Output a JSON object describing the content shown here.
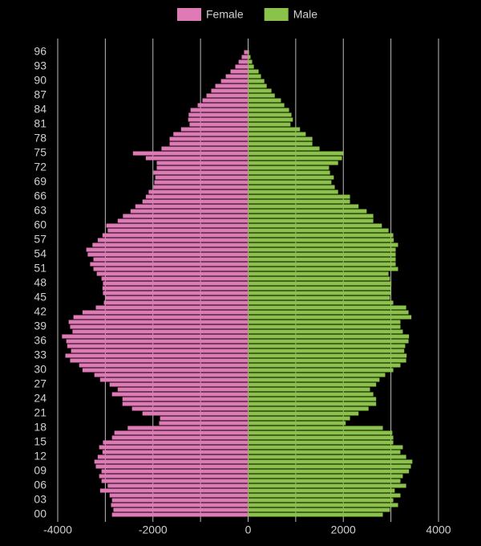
{
  "chart_data": {
    "type": "bar",
    "orientation": "horizontal",
    "stacking": "diverging",
    "categories": [
      "00",
      null,
      null,
      "03",
      null,
      null,
      "06",
      null,
      null,
      "09",
      null,
      null,
      "12",
      null,
      null,
      "15",
      null,
      null,
      "18",
      null,
      null,
      "21",
      null,
      null,
      "24",
      null,
      null,
      "27",
      null,
      null,
      "30",
      null,
      null,
      "33",
      null,
      null,
      "36",
      null,
      null,
      "39",
      null,
      null,
      "42",
      null,
      null,
      "45",
      null,
      null,
      "48",
      null,
      null,
      "51",
      null,
      null,
      "54",
      null,
      null,
      "57",
      null,
      null,
      "60",
      null,
      null,
      "63",
      null,
      null,
      "66",
      null,
      null,
      "69",
      null,
      null,
      "72",
      null,
      null,
      "75",
      null,
      null,
      "78",
      null,
      null,
      "81",
      null,
      null,
      "84",
      null,
      null,
      "87",
      null,
      null,
      "90",
      null,
      null,
      "93",
      null,
      null,
      "96"
    ],
    "series": [
      {
        "name": "Female",
        "color": "#e07ab6",
        "values": [
          -2860,
          -2830,
          -2880,
          -2860,
          -2910,
          -3110,
          -2950,
          -3080,
          -3130,
          -3080,
          -3200,
          -3230,
          -3160,
          -3060,
          -3130,
          -3050,
          -2860,
          -2810,
          -2530,
          -1870,
          -1850,
          -2220,
          -2440,
          -2640,
          -2640,
          -2860,
          -2740,
          -2910,
          -3110,
          -3230,
          -3480,
          -3550,
          -3740,
          -3840,
          -3720,
          -3800,
          -3820,
          -3910,
          -3690,
          -3740,
          -3770,
          -3670,
          -3480,
          -3200,
          -3030,
          -3000,
          -3050,
          -3060,
          -3050,
          -3080,
          -3180,
          -3250,
          -3320,
          -3250,
          -3370,
          -3400,
          -3270,
          -3160,
          -3060,
          -2950,
          -2980,
          -2740,
          -2630,
          -2470,
          -2370,
          -2220,
          -2150,
          -2090,
          -1990,
          -1970,
          -1950,
          -1990,
          -1920,
          -1920,
          -2150,
          -2420,
          -1820,
          -1650,
          -1650,
          -1570,
          -1410,
          -1230,
          -1260,
          -1250,
          -1210,
          -1060,
          -960,
          -875,
          -775,
          -690,
          -570,
          -470,
          -370,
          -270,
          -200,
          -135,
          -85
        ]
      },
      {
        "name": "Male",
        "color": "#8bc34a",
        "values": [
          2830,
          2980,
          3150,
          3050,
          3200,
          3080,
          3320,
          3200,
          3250,
          3380,
          3420,
          3450,
          3320,
          3200,
          3250,
          3050,
          3050,
          3030,
          2830,
          2050,
          2140,
          2320,
          2530,
          2690,
          2690,
          2630,
          2560,
          2690,
          2760,
          2880,
          3050,
          3200,
          3320,
          3330,
          3280,
          3300,
          3370,
          3380,
          3250,
          3200,
          3200,
          3430,
          3370,
          3320,
          3050,
          2980,
          3000,
          3000,
          3010,
          2980,
          2950,
          3150,
          3100,
          3100,
          3100,
          3100,
          3150,
          3060,
          3050,
          2950,
          2810,
          2630,
          2630,
          2490,
          2320,
          2140,
          2140,
          1890,
          1820,
          1750,
          1800,
          1720,
          1700,
          1890,
          1970,
          2000,
          1500,
          1350,
          1350,
          1210,
          1090,
          890,
          940,
          910,
          860,
          760,
          690,
          560,
          490,
          390,
          340,
          270,
          220,
          120,
          85,
          50,
          20
        ]
      }
    ],
    "xlim": [
      -4000,
      4000
    ],
    "xticks": [
      -4000,
      -2000,
      0,
      2000,
      4000
    ],
    "minor_xticks": [
      -3000,
      -1000,
      1000,
      3000
    ],
    "grid": true,
    "legend": "top"
  }
}
